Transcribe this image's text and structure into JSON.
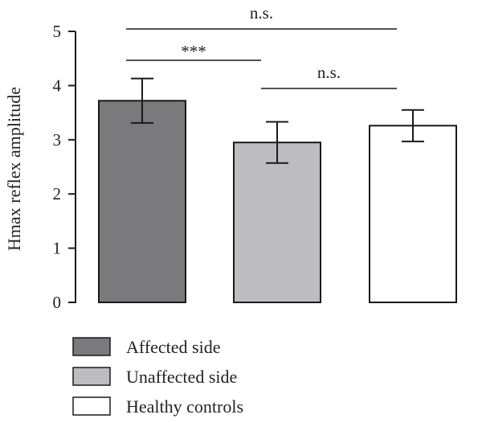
{
  "chart_data": {
    "type": "bar",
    "categories": [
      "Affected side",
      "Unaffected side",
      "Healthy controls"
    ],
    "values": [
      3.72,
      2.95,
      3.26
    ],
    "errors": [
      0.41,
      0.38,
      0.29
    ],
    "ylabel": "Hmax reflex amplitude",
    "ylim": [
      0,
      5
    ],
    "yticks": [
      0,
      1,
      2,
      3,
      4,
      5
    ],
    "grid": false,
    "legend_position": "bottom",
    "colors": [
      "#7a7a7c",
      "#bdbdbf",
      "#ffffff"
    ],
    "edge_color": "#1a1a1a",
    "significance": [
      {
        "from": 0,
        "to": 1,
        "label": "***"
      },
      {
        "from": 1,
        "to": 2,
        "label": "n.s."
      },
      {
        "from": 0,
        "to": 2,
        "label": "n.s."
      }
    ]
  }
}
